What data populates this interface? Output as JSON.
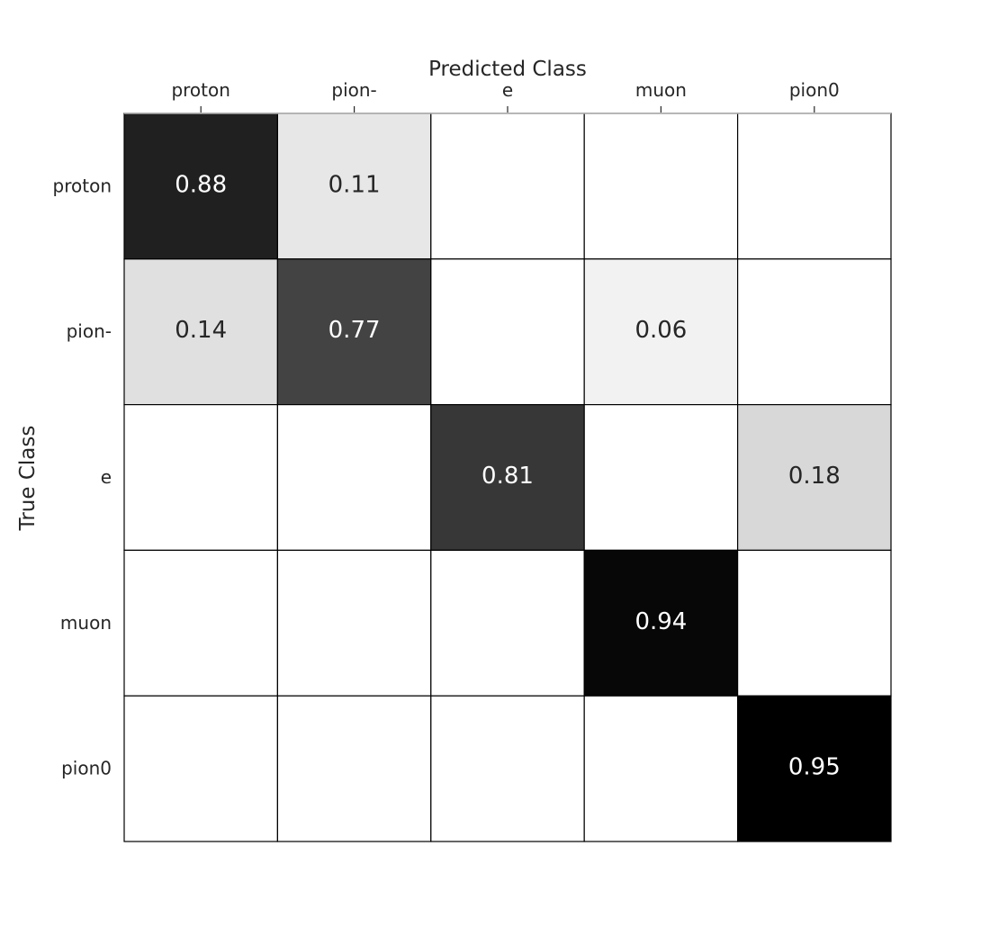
{
  "chart_data": {
    "type": "heatmap",
    "title": "",
    "xlabel": "Predicted Class",
    "ylabel": "True Class",
    "x_categories": [
      "proton",
      "pion-",
      "e",
      "muon",
      "pion0"
    ],
    "y_categories": [
      "proton",
      "pion-",
      "e",
      "muon",
      "pion0"
    ],
    "values": [
      [
        0.88,
        0.11,
        null,
        null,
        null
      ],
      [
        0.14,
        0.77,
        null,
        0.06,
        null
      ],
      [
        null,
        null,
        0.81,
        null,
        0.18
      ],
      [
        null,
        null,
        null,
        0.94,
        null
      ],
      [
        null,
        null,
        null,
        null,
        0.95
      ]
    ],
    "value_format": "0.00",
    "colormap": "greys",
    "vmin": 0,
    "vmax": 0.95,
    "x_axis_position": "top",
    "grid": true,
    "colors": {
      "text_dark": "#262626",
      "text_light": "#ffffff",
      "cell_border": "#000000",
      "frame_top": "#b0b0b0"
    }
  }
}
